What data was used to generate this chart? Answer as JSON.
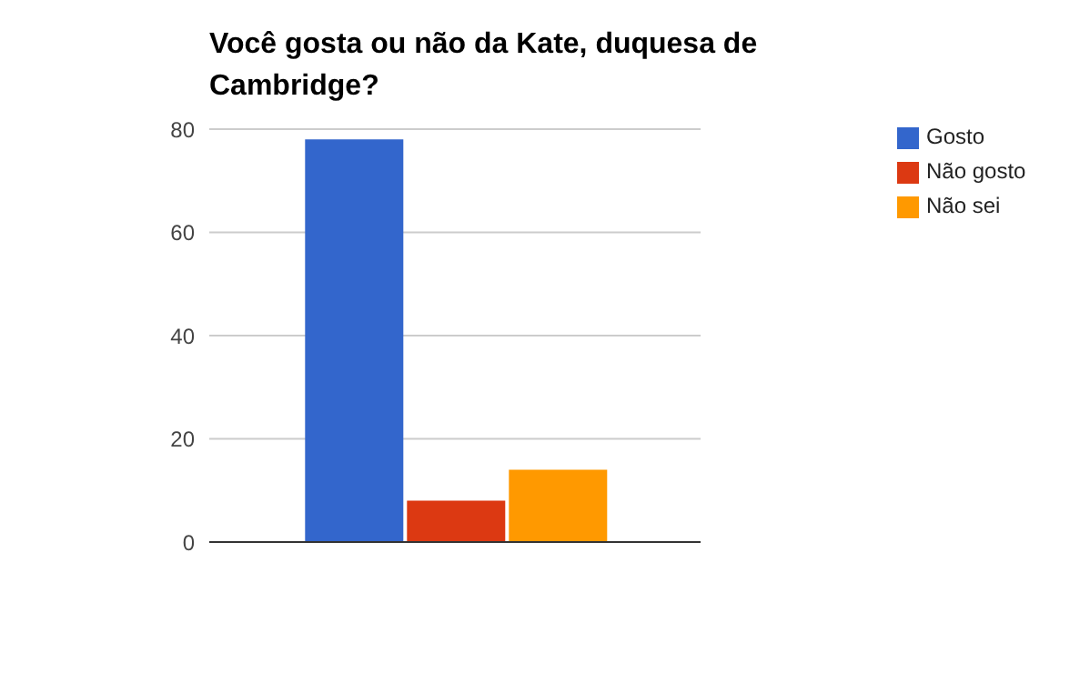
{
  "chart_data": {
    "type": "bar",
    "title": "Você gosta ou não da Kate, duquesa de Cambridge?",
    "categories": [
      null
    ],
    "series": [
      {
        "name": "Gosto",
        "color": "#3366cc",
        "values": [
          78
        ]
      },
      {
        "name": "Não gosto",
        "color": "#dc3912",
        "values": [
          8
        ]
      },
      {
        "name": "Não sei",
        "color": "#ff9900",
        "values": [
          14
        ]
      }
    ],
    "ylim": [
      0,
      80
    ],
    "yticks": [
      0,
      20,
      40,
      60,
      80
    ],
    "grid": "y",
    "legend": "top right"
  }
}
